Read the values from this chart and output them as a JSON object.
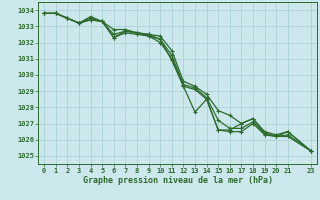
{
  "title": "Graphe pression niveau de la mer (hPa)",
  "background_color": "#cce8ec",
  "grid_color": "#b0d4d8",
  "line_color": "#2d6b2d",
  "xlim": [
    -0.5,
    23.5
  ],
  "ylim": [
    1024.5,
    1034.5
  ],
  "yticks": [
    1025,
    1026,
    1027,
    1028,
    1029,
    1030,
    1031,
    1032,
    1033,
    1034
  ],
  "xticks": [
    0,
    1,
    2,
    3,
    4,
    5,
    6,
    7,
    8,
    9,
    10,
    11,
    12,
    13,
    14,
    15,
    16,
    17,
    18,
    19,
    20,
    21,
    23
  ],
  "x": [
    0,
    1,
    2,
    3,
    4,
    5,
    6,
    7,
    8,
    9,
    10,
    11,
    12,
    13,
    14,
    15,
    16,
    17,
    18,
    19,
    20,
    21,
    23
  ],
  "series": {
    "line_max": [
      1033.8,
      1033.8,
      1033.5,
      1033.2,
      1033.6,
      1033.3,
      1032.8,
      1032.8,
      1032.6,
      1032.5,
      1032.4,
      1031.5,
      1029.6,
      1029.3,
      1028.8,
      1027.8,
      1027.5,
      1027.0,
      1027.3,
      1026.5,
      1026.3,
      1026.5,
      1025.3
    ],
    "line_mid1": [
      1033.8,
      1033.8,
      1033.5,
      1033.2,
      1033.5,
      1033.3,
      1032.5,
      1032.7,
      1032.6,
      1032.5,
      1032.2,
      1031.2,
      1029.4,
      1029.2,
      1028.6,
      1027.2,
      1026.7,
      1026.7,
      1027.1,
      1026.4,
      1026.2,
      1026.3,
      1025.3
    ],
    "line_mid2": [
      1033.8,
      1033.8,
      1033.5,
      1033.2,
      1033.4,
      1033.3,
      1032.3,
      1032.6,
      1032.5,
      1032.4,
      1032.0,
      1031.0,
      1029.3,
      1029.1,
      1028.5,
      1026.6,
      1026.5,
      1026.5,
      1027.0,
      1026.3,
      1026.2,
      1026.2,
      1025.3
    ],
    "line_cur": [
      1033.8,
      1033.8,
      1033.5,
      1033.2,
      1033.4,
      1033.3,
      1032.3,
      1032.7,
      1032.6,
      1032.4,
      1032.2,
      1030.9,
      1029.3,
      1027.7,
      1028.5,
      1026.6,
      1026.6,
      1027.0,
      1027.3,
      1026.4,
      1026.2,
      1026.5,
      1025.3
    ]
  },
  "marker": "+",
  "marker_size": 3.5,
  "line_width": 0.9
}
